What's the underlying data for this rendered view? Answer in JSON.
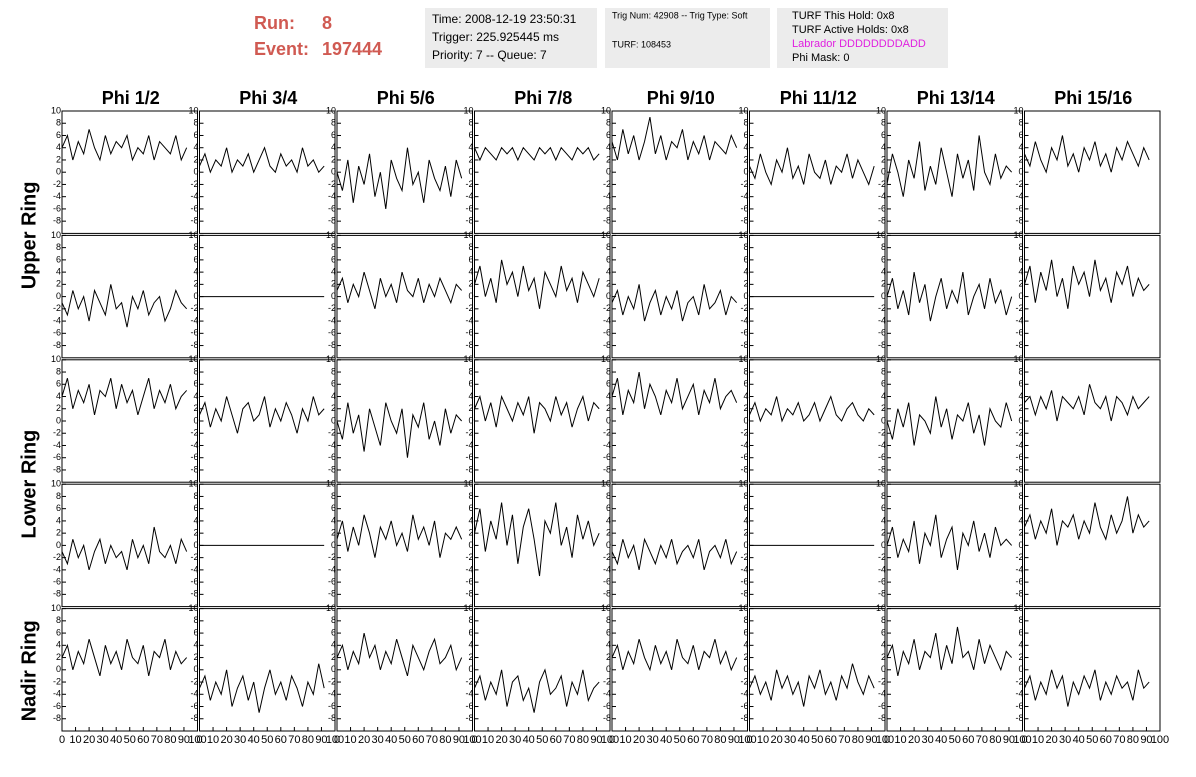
{
  "header": {
    "run_label": "Run:",
    "run": "8",
    "event_label": "Event:",
    "event": "197444"
  },
  "info_time": [
    "Time: 2008-12-19 23:50:31",
    "Trigger: 225.925445 ms",
    "Priority: 7 -- Queue: 7"
  ],
  "info_trig": [
    "Trig Num: 42908 -- Trig Type: Soft",
    "TURF: 108453"
  ],
  "info_turf": [
    "TURF This Hold: 0x8",
    "TURF Active Holds: 0x8",
    "Labrador DDDDDDDDADD",
    "Phi Mask: 0"
  ],
  "columns": [
    "Phi 1/2",
    "Phi 3/4",
    "Phi 5/6",
    "Phi 7/8",
    "Phi 9/10",
    "Phi 11/12",
    "Phi 13/14",
    "Phi 15/16"
  ],
  "rows": [
    "Upper Ring",
    "Lower Ring",
    "Nadir Ring"
  ],
  "axes": {
    "xlim": [
      0,
      100
    ],
    "ylim": [
      -10,
      10
    ],
    "xticks": [
      0,
      10,
      20,
      30,
      40,
      50,
      60,
      70,
      80,
      90,
      100
    ],
    "yticks": [
      -8,
      -6,
      -4,
      -2,
      0,
      2,
      4,
      6,
      8,
      10
    ],
    "x": [
      0,
      4,
      8,
      12,
      16,
      20,
      24,
      28,
      32,
      36,
      40,
      44,
      48,
      52,
      56,
      60,
      64,
      68,
      72,
      76,
      80,
      84,
      88,
      92
    ]
  },
  "chart_data": [
    {
      "type": "line",
      "color": "#000000",
      "values": [
        4,
        6,
        2,
        5,
        3,
        7,
        4,
        2,
        6,
        3,
        5,
        4,
        6,
        2,
        4,
        3,
        6,
        2,
        5,
        4,
        3,
        6,
        2,
        4
      ]
    },
    {
      "type": "line",
      "color": "#000000",
      "values": [
        1,
        3,
        0,
        2,
        1,
        4,
        0,
        2,
        1,
        3,
        0,
        2,
        4,
        1,
        0,
        3,
        1,
        2,
        0,
        4,
        1,
        2,
        0,
        1
      ]
    },
    {
      "type": "line",
      "color": "#000000",
      "values": [
        0,
        -3,
        2,
        -5,
        1,
        -2,
        3,
        -4,
        0,
        -6,
        2,
        -1,
        -3,
        4,
        -2,
        0,
        -5,
        2,
        -1,
        -3,
        1,
        -4,
        2,
        -1
      ]
    },
    {
      "type": "line",
      "color": "#000000",
      "values": [
        4,
        2,
        4,
        3,
        2,
        4,
        3,
        4,
        2,
        4,
        3,
        2,
        4,
        3,
        4,
        2,
        4,
        3,
        2,
        4,
        3,
        4,
        2,
        3
      ]
    },
    {
      "type": "line",
      "color": "#000000",
      "values": [
        5,
        2,
        7,
        3,
        6,
        2,
        5,
        9,
        3,
        6,
        2,
        5,
        4,
        7,
        2,
        5,
        3,
        6,
        2,
        5,
        4,
        3,
        6,
        4
      ]
    },
    {
      "type": "line",
      "color": "#000000",
      "values": [
        1,
        -1,
        3,
        0,
        -2,
        2,
        0,
        4,
        -1,
        1,
        -2,
        3,
        0,
        -1,
        2,
        -2,
        1,
        0,
        3,
        -1,
        2,
        0,
        -2,
        1
      ]
    },
    {
      "type": "line",
      "color": "#000000",
      "values": [
        -2,
        3,
        0,
        -4,
        2,
        -1,
        5,
        -3,
        1,
        -2,
        4,
        0,
        -4,
        3,
        -1,
        2,
        -3,
        6,
        0,
        -2,
        3,
        -1,
        1,
        0
      ]
    },
    {
      "type": "line",
      "color": "#000000",
      "values": [
        3,
        1,
        5,
        2,
        0,
        4,
        2,
        6,
        1,
        3,
        0,
        4,
        2,
        5,
        1,
        3,
        0,
        4,
        2,
        5,
        3,
        1,
        4,
        2
      ]
    },
    {
      "type": "line",
      "color": "#000000",
      "values": [
        -1,
        -3,
        1,
        -2,
        0,
        -4,
        1,
        -1,
        -3,
        2,
        -2,
        -1,
        -5,
        0,
        -2,
        1,
        -3,
        -1,
        0,
        -4,
        -2,
        1,
        -1,
        -2
      ]
    },
    {
      "type": "line",
      "color": "#000000",
      "values": [
        0,
        0,
        0,
        0,
        0,
        0,
        0,
        0,
        0,
        0,
        0,
        0,
        0,
        0,
        0,
        0,
        0,
        0,
        0,
        0,
        0,
        0,
        0,
        0
      ]
    },
    {
      "type": "line",
      "color": "#000000",
      "values": [
        1,
        3,
        -1,
        2,
        0,
        4,
        1,
        -2,
        3,
        0,
        2,
        -1,
        4,
        1,
        0,
        3,
        -1,
        2,
        0,
        3,
        1,
        -1,
        2,
        1
      ]
    },
    {
      "type": "line",
      "color": "#000000",
      "values": [
        2,
        5,
        0,
        3,
        -1,
        6,
        2,
        4,
        0,
        5,
        1,
        3,
        -2,
        4,
        2,
        0,
        5,
        1,
        3,
        -1,
        4,
        2,
        0,
        3
      ]
    },
    {
      "type": "line",
      "color": "#000000",
      "values": [
        -1,
        1,
        -3,
        0,
        -2,
        2,
        -4,
        -1,
        1,
        -3,
        0,
        -2,
        1,
        -4,
        -1,
        0,
        -3,
        2,
        -2,
        -1,
        1,
        -3,
        0,
        -1
      ]
    },
    {
      "type": "line",
      "color": "#000000",
      "values": [
        0,
        0,
        0,
        0,
        0,
        0,
        0,
        0,
        0,
        0,
        0,
        0,
        0,
        0,
        0,
        0,
        0,
        0,
        0,
        0,
        0,
        0,
        0,
        0
      ]
    },
    {
      "type": "line",
      "color": "#000000",
      "values": [
        0,
        3,
        -2,
        1,
        -3,
        4,
        -1,
        2,
        -4,
        0,
        3,
        -2,
        1,
        -1,
        4,
        -3,
        0,
        2,
        -2,
        3,
        -1,
        1,
        -3,
        0
      ]
    },
    {
      "type": "line",
      "color": "#000000",
      "values": [
        2,
        5,
        -1,
        4,
        1,
        6,
        0,
        3,
        -2,
        5,
        2,
        4,
        0,
        6,
        1,
        3,
        -1,
        4,
        2,
        5,
        0,
        3,
        1,
        2
      ]
    },
    {
      "type": "line",
      "color": "#000000",
      "values": [
        4,
        7,
        2,
        5,
        3,
        6,
        1,
        5,
        4,
        7,
        2,
        6,
        3,
        5,
        1,
        4,
        7,
        2,
        5,
        3,
        6,
        2,
        4,
        5
      ]
    },
    {
      "type": "line",
      "color": "#000000",
      "values": [
        1,
        3,
        -1,
        2,
        0,
        4,
        1,
        -2,
        2,
        3,
        0,
        1,
        4,
        -1,
        2,
        0,
        3,
        1,
        -2,
        2,
        0,
        4,
        1,
        2
      ]
    },
    {
      "type": "line",
      "color": "#000000",
      "values": [
        0,
        -3,
        3,
        -2,
        1,
        -5,
        2,
        -1,
        -4,
        3,
        0,
        -2,
        2,
        -6,
        1,
        -1,
        3,
        -3,
        0,
        -4,
        2,
        -2,
        1,
        0
      ]
    },
    {
      "type": "line",
      "color": "#000000",
      "values": [
        2,
        4,
        0,
        3,
        -1,
        4,
        2,
        0,
        3,
        1,
        4,
        -2,
        3,
        2,
        0,
        4,
        1,
        3,
        -1,
        2,
        4,
        0,
        3,
        2
      ]
    },
    {
      "type": "line",
      "color": "#000000",
      "values": [
        4,
        7,
        1,
        5,
        3,
        8,
        2,
        6,
        4,
        1,
        5,
        3,
        7,
        2,
        4,
        6,
        1,
        5,
        3,
        7,
        2,
        4,
        5,
        3
      ]
    },
    {
      "type": "line",
      "color": "#000000",
      "values": [
        1,
        3,
        0,
        2,
        1,
        4,
        0,
        2,
        1,
        3,
        0,
        1,
        3,
        0,
        2,
        4,
        1,
        0,
        2,
        3,
        1,
        0,
        2,
        1
      ]
    },
    {
      "type": "line",
      "color": "#000000",
      "values": [
        0,
        -3,
        2,
        -1,
        3,
        -4,
        1,
        0,
        -2,
        4,
        -1,
        2,
        -3,
        1,
        0,
        3,
        -2,
        1,
        -4,
        2,
        0,
        -1,
        3,
        0
      ]
    },
    {
      "type": "line",
      "color": "#000000",
      "values": [
        3,
        4,
        1,
        4,
        2,
        5,
        0,
        4,
        3,
        2,
        4,
        1,
        6,
        3,
        2,
        4,
        0,
        4,
        3,
        1,
        4,
        2,
        3,
        4
      ]
    },
    {
      "type": "line",
      "color": "#000000",
      "values": [
        -1,
        -3,
        1,
        -2,
        0,
        -4,
        -1,
        1,
        -3,
        0,
        -2,
        -1,
        -4,
        1,
        -2,
        0,
        -3,
        3,
        -1,
        -2,
        0,
        -3,
        1,
        -1
      ]
    },
    {
      "type": "line",
      "color": "#000000",
      "values": [
        0,
        0,
        0,
        0,
        0,
        0,
        0,
        0,
        0,
        0,
        0,
        0,
        0,
        0,
        0,
        0,
        0,
        0,
        0,
        0,
        0,
        0,
        0,
        0
      ]
    },
    {
      "type": "line",
      "color": "#000000",
      "values": [
        1,
        4,
        -1,
        3,
        0,
        5,
        2,
        -2,
        3,
        1,
        4,
        0,
        2,
        -1,
        5,
        1,
        3,
        0,
        4,
        -2,
        2,
        1,
        3,
        1
      ]
    },
    {
      "type": "line",
      "color": "#000000",
      "values": [
        2,
        6,
        -1,
        4,
        1,
        7,
        0,
        5,
        -3,
        3,
        6,
        1,
        -5,
        4,
        2,
        7,
        0,
        3,
        -2,
        5,
        1,
        4,
        0,
        2
      ]
    },
    {
      "type": "line",
      "color": "#000000",
      "values": [
        -1,
        -3,
        1,
        -2,
        0,
        -4,
        1,
        -1,
        -3,
        0,
        -2,
        1,
        -3,
        -1,
        0,
        -2,
        1,
        -4,
        -1,
        0,
        -2,
        1,
        -3,
        -1
      ]
    },
    {
      "type": "line",
      "color": "#000000",
      "values": [
        0,
        0,
        0,
        0,
        0,
        0,
        0,
        0,
        0,
        0,
        0,
        0,
        0,
        0,
        0,
        0,
        0,
        0,
        0,
        0,
        0,
        0,
        0,
        0
      ]
    },
    {
      "type": "line",
      "color": "#000000",
      "values": [
        0,
        3,
        -2,
        1,
        -1,
        4,
        -3,
        2,
        0,
        5,
        -2,
        1,
        3,
        -4,
        2,
        0,
        4,
        -1,
        2,
        -2,
        3,
        0,
        1,
        0
      ]
    },
    {
      "type": "line",
      "color": "#000000",
      "values": [
        3,
        5,
        1,
        4,
        2,
        6,
        0,
        4,
        3,
        5,
        1,
        4,
        2,
        7,
        3,
        1,
        5,
        2,
        4,
        8,
        2,
        5,
        3,
        4
      ]
    },
    {
      "type": "line",
      "color": "#000000",
      "values": [
        2,
        4,
        0,
        3,
        1,
        5,
        2,
        -1,
        4,
        1,
        3,
        0,
        5,
        2,
        1,
        4,
        -1,
        3,
        2,
        5,
        0,
        3,
        1,
        2
      ]
    },
    {
      "type": "line",
      "color": "#000000",
      "values": [
        -3,
        -1,
        -5,
        -2,
        -4,
        0,
        -6,
        -3,
        -1,
        -5,
        -2,
        -7,
        -3,
        0,
        -4,
        -2,
        -5,
        -1,
        -3,
        -6,
        -2,
        -4,
        1,
        -3
      ]
    },
    {
      "type": "line",
      "color": "#000000",
      "values": [
        2,
        4,
        0,
        3,
        1,
        6,
        2,
        4,
        0,
        3,
        1,
        5,
        2,
        -1,
        4,
        2,
        0,
        3,
        5,
        1,
        2,
        4,
        0,
        2
      ]
    },
    {
      "type": "line",
      "color": "#000000",
      "values": [
        -3,
        -1,
        -5,
        -2,
        -4,
        0,
        -6,
        -2,
        -1,
        -5,
        -3,
        -7,
        -2,
        0,
        -4,
        -3,
        -1,
        -6,
        -2,
        -4,
        0,
        -5,
        -3,
        -2
      ]
    },
    {
      "type": "line",
      "color": "#000000",
      "values": [
        2,
        4,
        0,
        3,
        1,
        5,
        2,
        0,
        4,
        1,
        3,
        0,
        5,
        2,
        1,
        4,
        0,
        3,
        2,
        5,
        1,
        3,
        0,
        2
      ]
    },
    {
      "type": "line",
      "color": "#000000",
      "values": [
        -3,
        -1,
        -4,
        -2,
        -5,
        0,
        -3,
        -1,
        -4,
        -2,
        -6,
        -1,
        -3,
        0,
        -4,
        -2,
        -5,
        -1,
        -3,
        1,
        -2,
        -4,
        -1,
        -3
      ]
    },
    {
      "type": "line",
      "color": "#000000",
      "values": [
        2,
        4,
        -1,
        3,
        1,
        5,
        0,
        3,
        2,
        6,
        0,
        4,
        1,
        7,
        2,
        3,
        0,
        5,
        1,
        4,
        2,
        0,
        3,
        2
      ]
    },
    {
      "type": "line",
      "color": "#000000",
      "values": [
        -3,
        -1,
        -5,
        -2,
        -4,
        0,
        -3,
        -1,
        -6,
        -2,
        -4,
        -1,
        -3,
        0,
        -5,
        -2,
        -4,
        -1,
        -3,
        -2,
        -5,
        0,
        -3,
        -2
      ]
    }
  ]
}
